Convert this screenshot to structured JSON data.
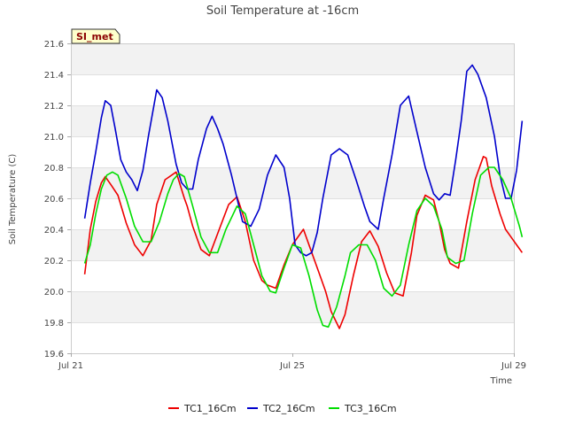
{
  "chart_data": {
    "type": "line",
    "title": "Soil Temperature at -16cm",
    "xlabel": "Time",
    "ylabel": "Soil Temperature (C)",
    "badge": "SI_met",
    "xlim": [
      0,
      8
    ],
    "ylim": [
      19.6,
      21.6
    ],
    "yticks": [
      19.6,
      19.8,
      20.0,
      20.2,
      20.4,
      20.6,
      20.8,
      21.0,
      21.2,
      21.4,
      21.6
    ],
    "ytick_labels": [
      "19.6",
      "19.8",
      "20.0",
      "20.2",
      "20.4",
      "20.6",
      "20.8",
      "21.0",
      "21.2",
      "21.4",
      "21.6"
    ],
    "xticks": [
      0,
      4,
      8
    ],
    "xtick_labels": [
      "Jul 21",
      "Jul 25",
      "Jul 29"
    ],
    "series": [
      {
        "name": "TC1_16Cm",
        "color": "#ee0000",
        "x": [
          0.25,
          0.35,
          0.45,
          0.55,
          0.62,
          0.72,
          0.85,
          1.0,
          1.15,
          1.3,
          1.45,
          1.55,
          1.7,
          1.9,
          2.05,
          2.1,
          2.2,
          2.35,
          2.5,
          2.7,
          2.85,
          3.0,
          3.15,
          3.3,
          3.45,
          3.55,
          3.7,
          3.85,
          4.0,
          4.2,
          4.35,
          4.5,
          4.6,
          4.7,
          4.85,
          4.95,
          5.1,
          5.25,
          5.4,
          5.55,
          5.7,
          5.85,
          6.0,
          6.15,
          6.25,
          6.4,
          6.55,
          6.65,
          6.75,
          6.85,
          7.0,
          7.15,
          7.3,
          7.45,
          7.5,
          7.6,
          7.75,
          7.85,
          7.95,
          8.05,
          8.15
        ],
        "values": [
          20.11,
          20.4,
          20.58,
          20.7,
          20.74,
          20.69,
          20.62,
          20.44,
          20.3,
          20.23,
          20.33,
          20.56,
          20.72,
          20.77,
          20.6,
          20.55,
          20.42,
          20.27,
          20.23,
          20.42,
          20.56,
          20.61,
          20.45,
          20.2,
          20.07,
          20.04,
          20.02,
          20.17,
          20.3,
          20.4,
          20.25,
          20.1,
          20.0,
          19.87,
          19.76,
          19.85,
          20.1,
          20.32,
          20.39,
          20.29,
          20.12,
          19.99,
          19.97,
          20.25,
          20.49,
          20.62,
          20.59,
          20.45,
          20.27,
          20.18,
          20.15,
          20.45,
          20.72,
          20.87,
          20.86,
          20.68,
          20.5,
          20.4,
          20.35,
          20.3,
          20.25
        ]
      },
      {
        "name": "TC2_16Cm",
        "color": "#0000cc",
        "x": [
          0.25,
          0.35,
          0.45,
          0.55,
          0.62,
          0.72,
          0.8,
          0.9,
          1.0,
          1.1,
          1.2,
          1.3,
          1.4,
          1.55,
          1.65,
          1.75,
          1.9,
          2.0,
          2.1,
          2.2,
          2.3,
          2.45,
          2.55,
          2.65,
          2.75,
          2.9,
          3.0,
          3.1,
          3.25,
          3.4,
          3.55,
          3.7,
          3.85,
          3.95,
          4.05,
          4.15,
          4.25,
          4.35,
          4.45,
          4.55,
          4.7,
          4.85,
          5.0,
          5.15,
          5.3,
          5.4,
          5.55,
          5.65,
          5.8,
          5.95,
          6.1,
          6.25,
          6.4,
          6.55,
          6.65,
          6.75,
          6.85,
          6.95,
          7.05,
          7.15,
          7.25,
          7.35,
          7.5,
          7.65,
          7.75,
          7.85,
          7.95,
          8.05,
          8.15
        ],
        "values": [
          20.47,
          20.7,
          20.9,
          21.12,
          21.23,
          21.2,
          21.05,
          20.85,
          20.77,
          20.72,
          20.65,
          20.78,
          21.0,
          21.3,
          21.25,
          21.1,
          20.82,
          20.7,
          20.66,
          20.66,
          20.85,
          21.05,
          21.13,
          21.05,
          20.95,
          20.75,
          20.6,
          20.45,
          20.42,
          20.53,
          20.75,
          20.88,
          20.8,
          20.6,
          20.3,
          20.25,
          20.23,
          20.25,
          20.38,
          20.6,
          20.88,
          20.92,
          20.88,
          20.72,
          20.55,
          20.45,
          20.4,
          20.6,
          20.88,
          21.2,
          21.26,
          21.03,
          20.8,
          20.63,
          20.59,
          20.63,
          20.62,
          20.85,
          21.1,
          21.42,
          21.46,
          21.4,
          21.25,
          21.0,
          20.75,
          20.6,
          20.6,
          20.78,
          21.1
        ]
      },
      {
        "name": "TC3_16Cm",
        "color": "#00dd00",
        "x": [
          0.25,
          0.35,
          0.45,
          0.55,
          0.65,
          0.75,
          0.85,
          1.0,
          1.15,
          1.3,
          1.45,
          1.6,
          1.75,
          1.85,
          1.95,
          2.05,
          2.2,
          2.35,
          2.5,
          2.65,
          2.8,
          3.0,
          3.15,
          3.3,
          3.45,
          3.6,
          3.7,
          3.85,
          4.0,
          4.15,
          4.3,
          4.45,
          4.55,
          4.65,
          4.8,
          4.95,
          5.05,
          5.2,
          5.35,
          5.5,
          5.65,
          5.8,
          5.95,
          6.1,
          6.25,
          6.4,
          6.55,
          6.7,
          6.8,
          6.95,
          7.1,
          7.25,
          7.4,
          7.55,
          7.65,
          7.8,
          7.95,
          8.1,
          8.15
        ],
        "values": [
          20.18,
          20.3,
          20.5,
          20.66,
          20.75,
          20.77,
          20.75,
          20.6,
          20.42,
          20.32,
          20.32,
          20.45,
          20.63,
          20.72,
          20.76,
          20.74,
          20.55,
          20.35,
          20.25,
          20.25,
          20.4,
          20.55,
          20.5,
          20.3,
          20.1,
          20.0,
          19.99,
          20.15,
          20.3,
          20.28,
          20.1,
          19.88,
          19.78,
          19.77,
          19.9,
          20.1,
          20.25,
          20.3,
          20.3,
          20.2,
          20.02,
          19.97,
          20.04,
          20.3,
          20.52,
          20.6,
          20.55,
          20.4,
          20.22,
          20.18,
          20.2,
          20.5,
          20.75,
          20.8,
          20.8,
          20.72,
          20.6,
          20.42,
          20.35
        ]
      }
    ]
  }
}
